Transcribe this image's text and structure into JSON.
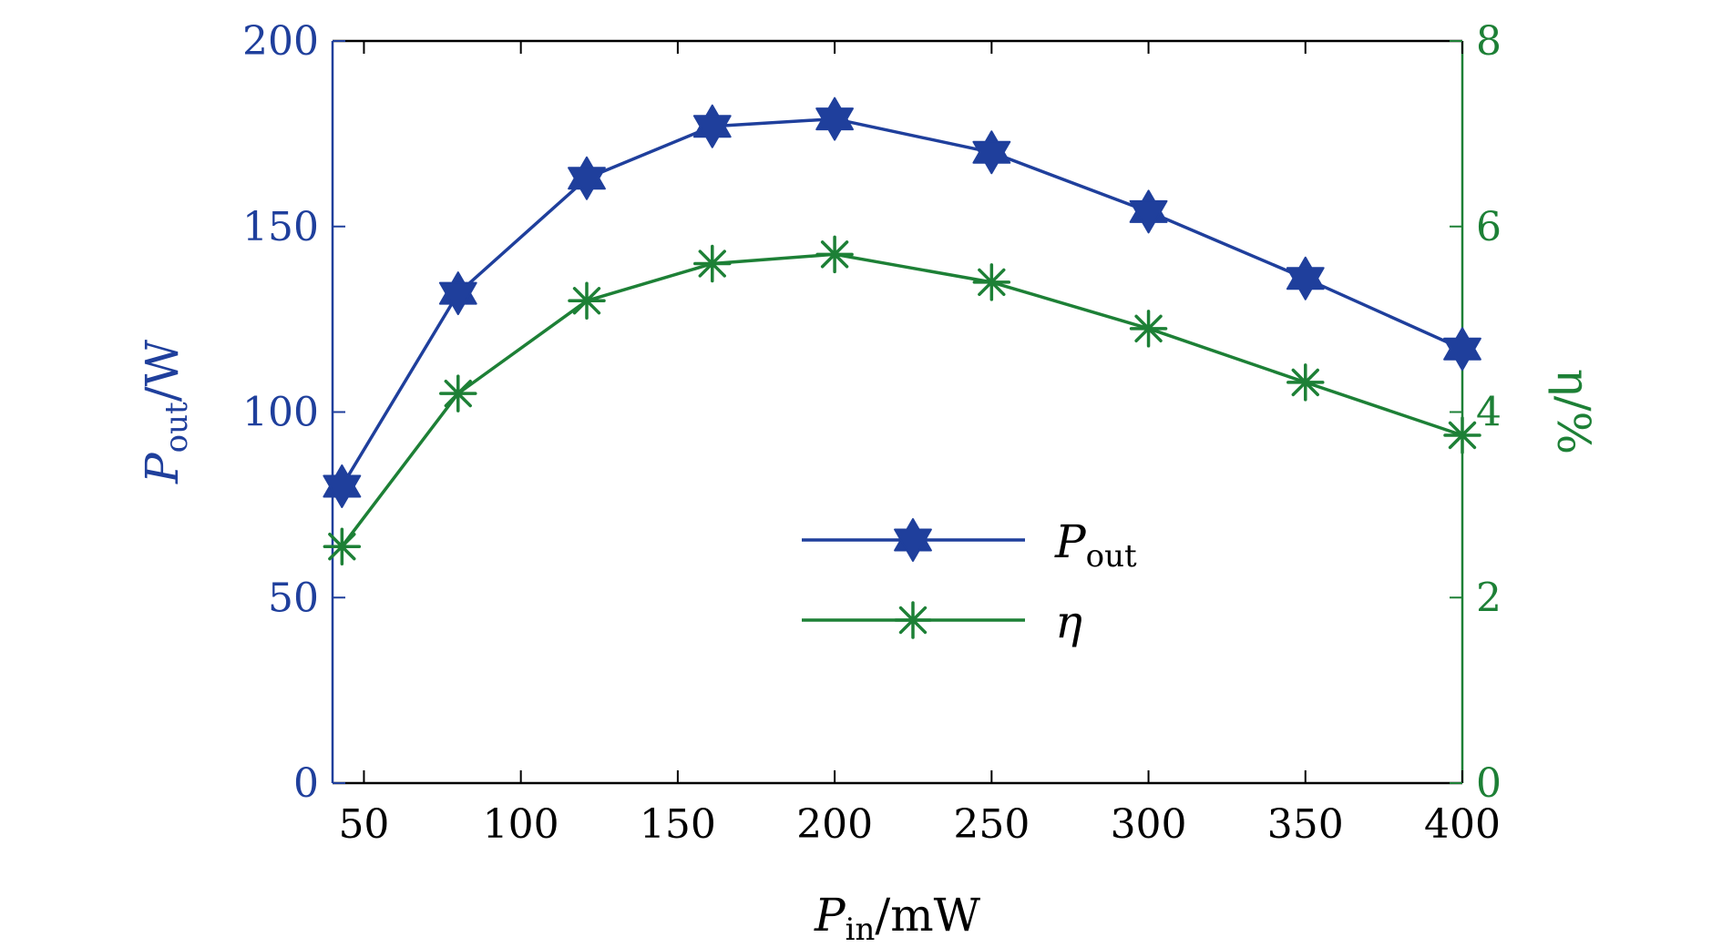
{
  "chart_data": {
    "type": "line",
    "x_values": [
      43,
      80,
      121,
      161,
      200,
      250,
      300,
      350,
      400
    ],
    "x_ticks": [
      "50",
      "100",
      "150",
      "200",
      "250",
      "300",
      "350",
      "400"
    ],
    "x_tick_values": [
      50,
      100,
      150,
      200,
      250,
      300,
      350,
      400
    ],
    "xlim": [
      40,
      400
    ],
    "xlabel_main": "P",
    "xlabel_sub": "in",
    "xlabel_unit": "/mW",
    "left_axis": {
      "label_main": "P",
      "label_sub": "out",
      "label_unit": "/W",
      "ylim": [
        0,
        200
      ],
      "ticks": [
        "0",
        "50",
        "100",
        "150",
        "200"
      ],
      "tick_values": [
        0,
        50,
        100,
        150,
        200
      ],
      "color": "#1f3f9c"
    },
    "right_axis": {
      "label": "η/%",
      "ylim": [
        0,
        8
      ],
      "ticks": [
        "0",
        "2",
        "4",
        "6",
        "8"
      ],
      "tick_values": [
        0,
        2,
        4,
        6,
        8
      ],
      "color": "#1d8036"
    },
    "series": [
      {
        "name": "P_out",
        "legend_main": "P",
        "legend_sub": "out",
        "axis": "left",
        "marker": "hexagram",
        "color": "#1f3f9c",
        "values": [
          80,
          132,
          163,
          177,
          179,
          170,
          154,
          136,
          117
        ]
      },
      {
        "name": "η",
        "legend_main": "η",
        "legend_sub": "",
        "axis": "right",
        "marker": "asterisk",
        "color": "#1d8036",
        "values": [
          2.55,
          4.2,
          5.2,
          5.6,
          5.7,
          5.4,
          4.9,
          4.32,
          3.75
        ]
      }
    ],
    "legend_position": "center"
  }
}
